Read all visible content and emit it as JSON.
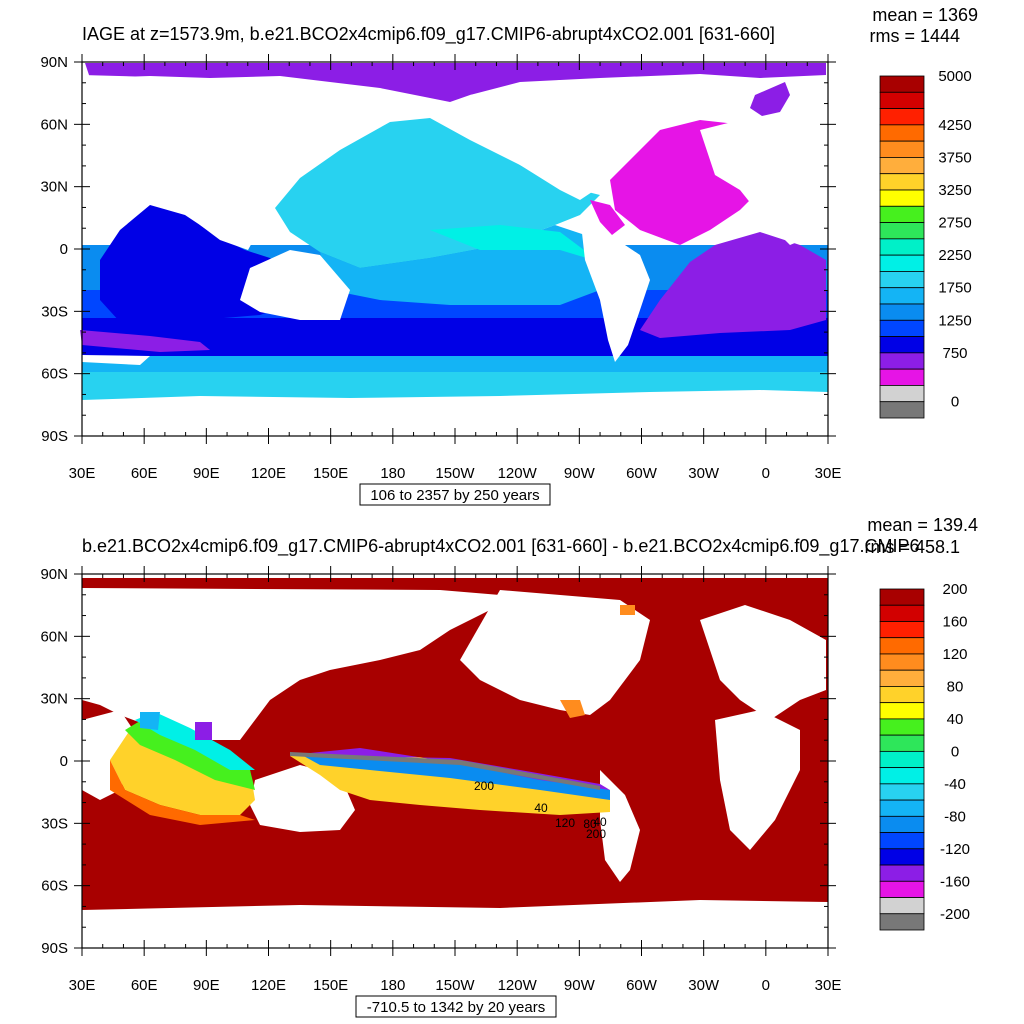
{
  "chart_data": [
    {
      "type": "heatmap",
      "title": "IAGE at z=1573.9m, b.e21.BCO2x4cmip6.f09_g17.CMIP6-abrupt4xCO2.001 [631-660]",
      "stats": {
        "mean": "mean = 1369",
        "rms": "rms = 1444"
      },
      "x_ticks": [
        "30E",
        "60E",
        "90E",
        "120E",
        "150E",
        "180",
        "150W",
        "120W",
        "90W",
        "60W",
        "30W",
        "0",
        "30E"
      ],
      "y_ticks": [
        "90N",
        "60N",
        "30N",
        "0",
        "30S",
        "60S",
        "90S"
      ],
      "xlim": [
        30,
        390
      ],
      "ylim": [
        -90,
        90
      ],
      "range_label": "106 to 2357 by 250 years",
      "colorbar": {
        "labels": [
          "5000",
          "4250",
          "3750",
          "3250",
          "2750",
          "2250",
          "1750",
          "1250",
          "750",
          "0"
        ],
        "colors": [
          "#a80000",
          "#d20000",
          "#ff2000",
          "#ff6a00",
          "#ff8c1e",
          "#ffae3c",
          "#ffd22a",
          "#ffff00",
          "#46f01e",
          "#2ee65a",
          "#00f0c8",
          "#00f0e6",
          "#28d2f0",
          "#14b4f5",
          "#0a8cf0",
          "#0046ff",
          "#0000e6",
          "#8c1ee6",
          "#e614e6",
          "#d2d2d2",
          "#787878"
        ]
      }
    },
    {
      "type": "heatmap",
      "title": "b.e21.BCO2x4cmip6.f09_g17.CMIP6-abrupt4xCO2.001 [631-660] - b.e21.BCO2x4cmip6.f09_g17.CMIP6",
      "stats": {
        "mean": "mean = 139.4",
        "rms": "rms = 458.1"
      },
      "x_ticks": [
        "30E",
        "60E",
        "90E",
        "120E",
        "150E",
        "180",
        "150W",
        "120W",
        "90W",
        "60W",
        "30W",
        "0",
        "30E"
      ],
      "y_ticks": [
        "90N",
        "60N",
        "30N",
        "0",
        "30S",
        "60S",
        "90S"
      ],
      "xlim": [
        30,
        390
      ],
      "ylim": [
        -90,
        90
      ],
      "range_label": "-710.5 to 1342 by 20 years",
      "contour_labels": [
        "200",
        "40",
        "120",
        "80",
        "40",
        "200"
      ],
      "colorbar": {
        "labels": [
          "200",
          "160",
          "120",
          "80",
          "40",
          "0",
          "-40",
          "-80",
          "-120",
          "-160",
          "-200"
        ],
        "colors": [
          "#a80000",
          "#d20000",
          "#ff2000",
          "#ff6a00",
          "#ff8c1e",
          "#ffae3c",
          "#ffd22a",
          "#ffff00",
          "#46f01e",
          "#2ee65a",
          "#00f0c8",
          "#00f0e6",
          "#28d2f0",
          "#14b4f5",
          "#0a8cf0",
          "#0046ff",
          "#0000e6",
          "#8c1ee6",
          "#e614e6",
          "#d2d2d2",
          "#787878"
        ]
      }
    }
  ]
}
